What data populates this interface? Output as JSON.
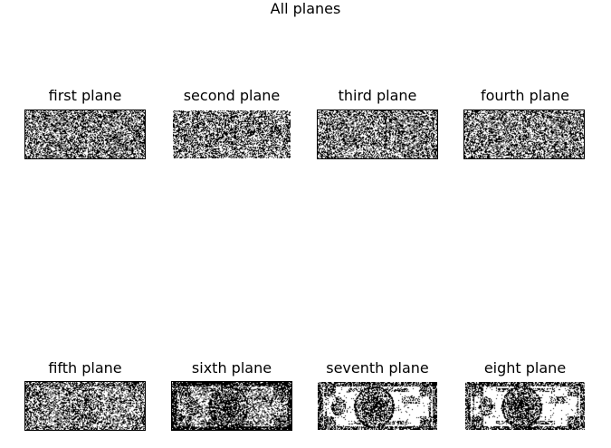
{
  "figure": {
    "suptitle": "All planes"
  },
  "planes": [
    {
      "title": "first plane",
      "bit": 1,
      "appearance": "noise"
    },
    {
      "title": "second plane",
      "bit": 2,
      "appearance": "noise"
    },
    {
      "title": "third plane",
      "bit": 3,
      "appearance": "noise"
    },
    {
      "title": "fourth plane",
      "bit": 4,
      "appearance": "noise"
    },
    {
      "title": "fifth plane",
      "bit": 5,
      "appearance": "faint-banknote"
    },
    {
      "title": "sixth plane",
      "bit": 6,
      "appearance": "dark-banknote"
    },
    {
      "title": "seventh plane",
      "bit": 7,
      "appearance": "banknote"
    },
    {
      "title": "eight plane",
      "bit": 8,
      "appearance": "banknote"
    }
  ],
  "colors": {
    "ink": "#000000",
    "paper": "#ffffff"
  }
}
